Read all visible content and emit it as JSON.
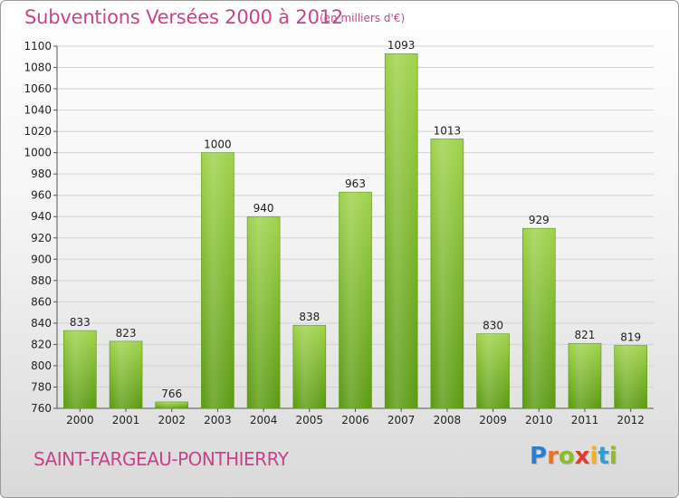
{
  "chart_data": {
    "type": "bar",
    "title": "Subventions Versées 2000 à 2012",
    "subtitle": "(en milliers d'€)",
    "categories": [
      "2000",
      "2001",
      "2002",
      "2003",
      "2004",
      "2005",
      "2006",
      "2007",
      "2008",
      "2009",
      "2010",
      "2011",
      "2012"
    ],
    "values": [
      833,
      823,
      766,
      1000,
      940,
      838,
      963,
      1093,
      1013,
      830,
      929,
      821,
      819
    ],
    "value_labels": [
      "833",
      "823",
      "766",
      "1000",
      "940",
      "838",
      "963",
      "1093",
      "1013",
      "830",
      "929",
      "821",
      "819"
    ],
    "ylim": [
      760,
      1100
    ],
    "yticks": [
      760,
      780,
      800,
      820,
      840,
      860,
      880,
      900,
      920,
      940,
      960,
      980,
      1000,
      1020,
      1040,
      1060,
      1080,
      1100
    ],
    "grid": true,
    "bar_color": "#7cb82f",
    "text_color": "#c8428c"
  },
  "footer": {
    "town": "SAINT-FARGEAU-PONTHIERRY",
    "logo": [
      {
        "ch": "P",
        "color": "#2a7fd0"
      },
      {
        "ch": "r",
        "color": "#e8742a"
      },
      {
        "ch": "o",
        "color": "#8bbd2a"
      },
      {
        "ch": "x",
        "color": "#e23a2a"
      },
      {
        "ch": "i",
        "color": "#f0b21e"
      },
      {
        "ch": "t",
        "color": "#2a9fd8"
      },
      {
        "ch": "i",
        "color": "#8bbd2a"
      }
    ]
  }
}
